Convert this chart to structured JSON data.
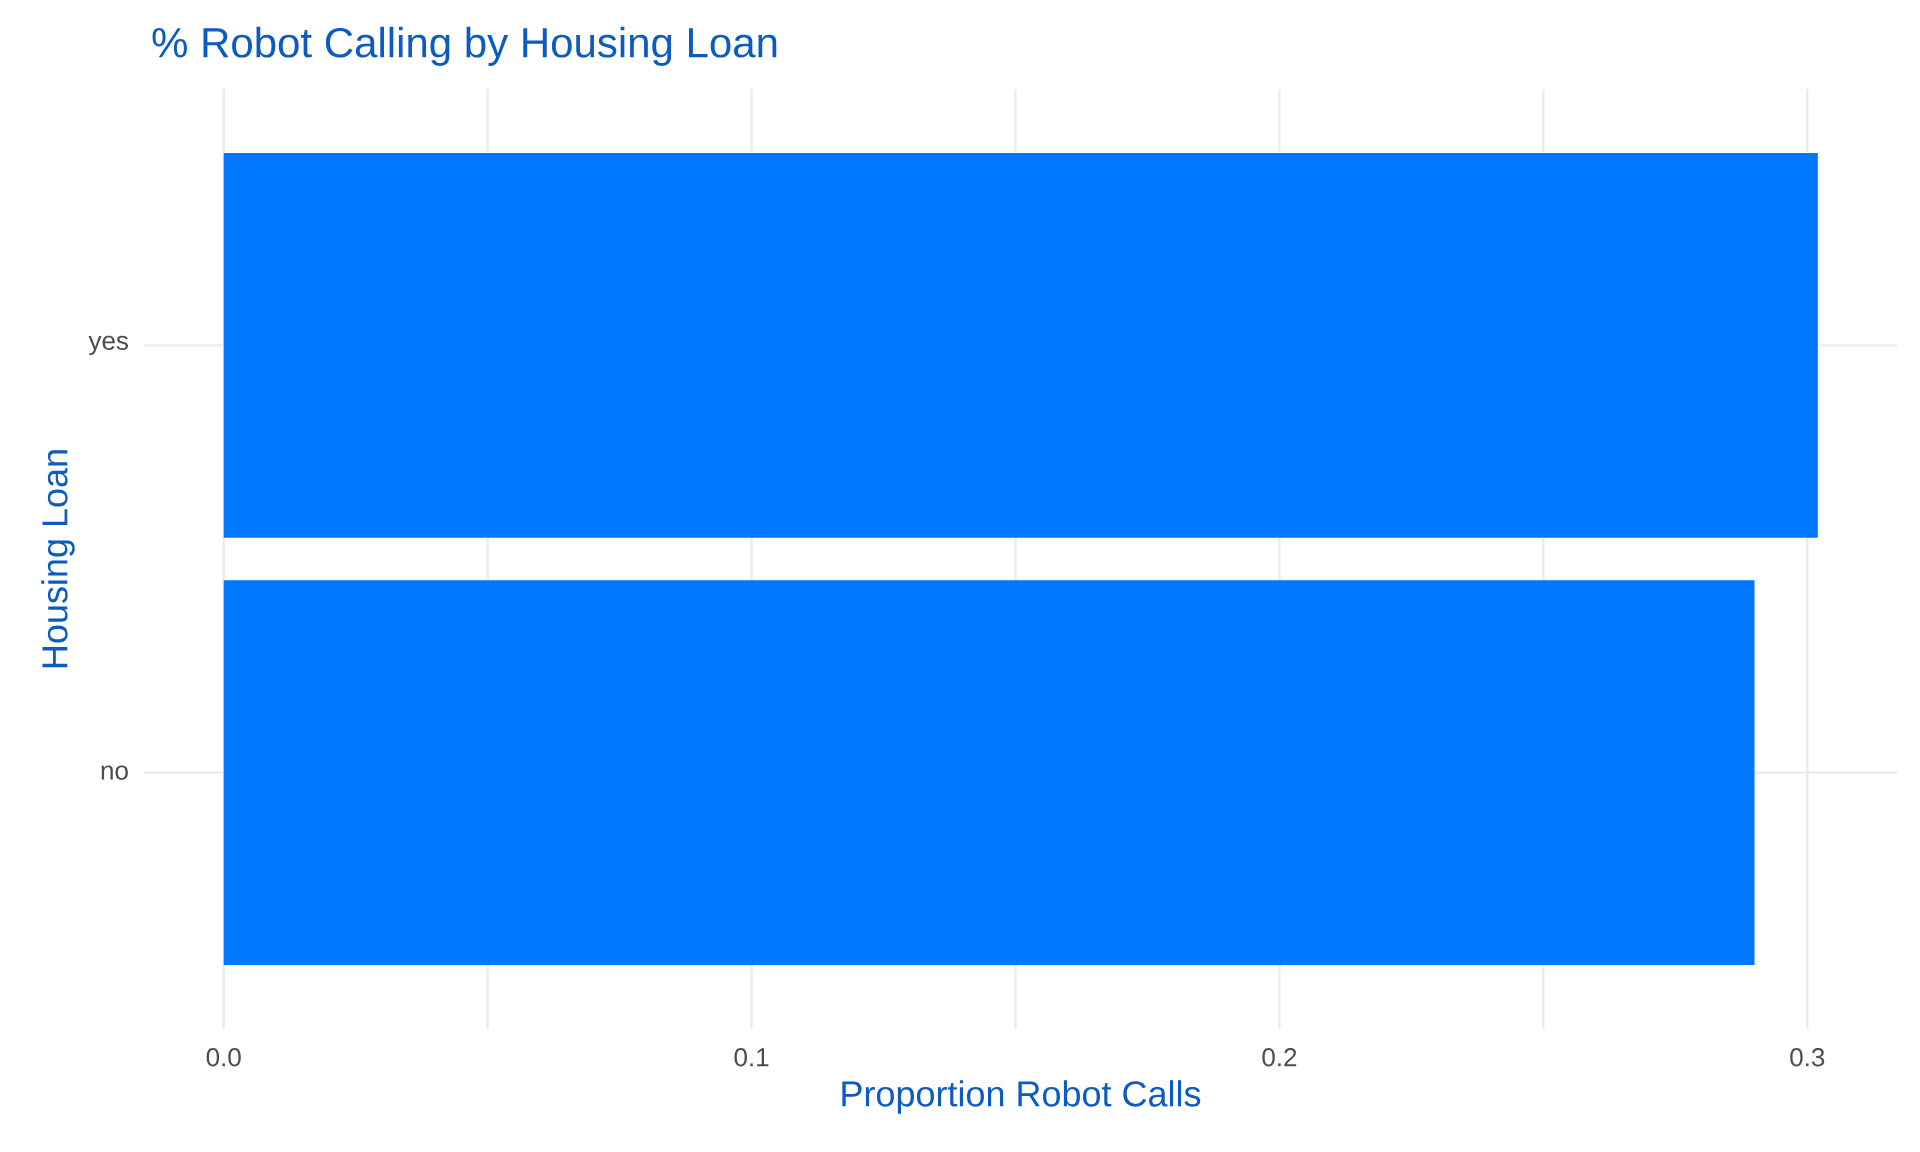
{
  "chart_data": {
    "type": "bar",
    "orientation": "horizontal",
    "title": "% Robot Calling by Housing Loan",
    "xlabel": "Proportion Robot Calls",
    "ylabel": "Housing Loan",
    "categories": [
      "yes",
      "no"
    ],
    "values": [
      0.302,
      0.29
    ],
    "color": "#0077ff",
    "xlim": [
      -0.0151,
      0.317
    ],
    "xticks": [
      {
        "value": 0,
        "label": "0.0"
      },
      {
        "value": 0.05,
        "label": null
      },
      0.1,
      {
        "value": 0.15,
        "label": null
      },
      0.2,
      {
        "value": 0.25,
        "label": null
      },
      0.3
    ],
    "grid": true
  }
}
